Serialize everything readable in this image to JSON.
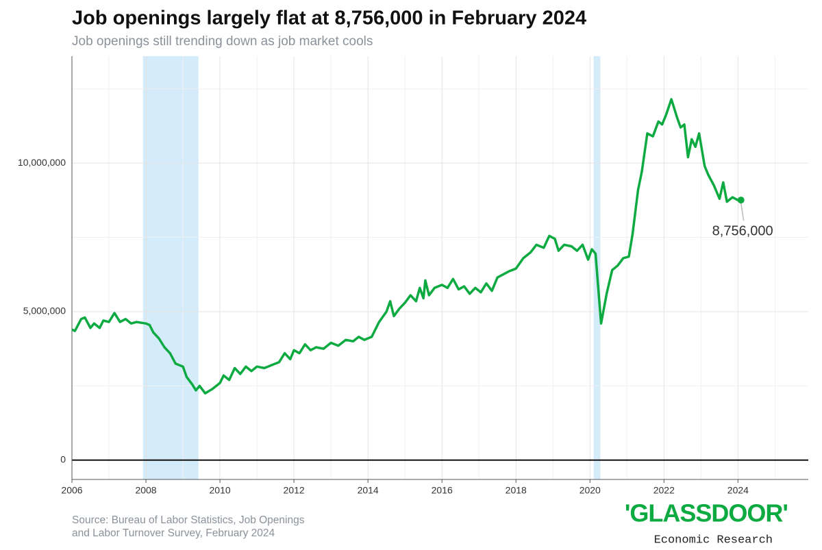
{
  "chart_data": {
    "type": "line",
    "title": "Job openings largely flat at 8,756,000 in February 2024",
    "subtitle": "Job openings still trending down as job market cools",
    "source": [
      "Source: Bureau of Labor Statistics, Job Openings",
      "and Labor Turnover Survey, February 2024"
    ],
    "logo": "'GLASSDOOR'",
    "logo_subtitle": "Economic Research",
    "annotation": "8,756,000",
    "x": [
      2006.0,
      2006.08,
      2006.25,
      2006.35,
      2006.5,
      2006.6,
      2006.75,
      2006.85,
      2007.0,
      2007.15,
      2007.3,
      2007.45,
      2007.6,
      2007.75,
      2008.0,
      2008.1,
      2008.2,
      2008.35,
      2008.5,
      2008.65,
      2008.8,
      2009.0,
      2009.1,
      2009.25,
      2009.35,
      2009.45,
      2009.6,
      2009.8,
      2010.0,
      2010.1,
      2010.25,
      2010.4,
      2010.55,
      2010.7,
      2010.85,
      2011.0,
      2011.2,
      2011.4,
      2011.6,
      2011.75,
      2011.9,
      2012.0,
      2012.15,
      2012.3,
      2012.45,
      2012.6,
      2012.8,
      2013.0,
      2013.2,
      2013.4,
      2013.6,
      2013.75,
      2013.9,
      2014.1,
      2014.3,
      2014.5,
      2014.6,
      2014.7,
      2014.85,
      2015.0,
      2015.15,
      2015.3,
      2015.4,
      2015.5,
      2015.55,
      2015.65,
      2015.8,
      2016.0,
      2016.15,
      2016.3,
      2016.45,
      2016.6,
      2016.75,
      2016.9,
      2017.05,
      2017.2,
      2017.35,
      2017.5,
      2017.65,
      2017.8,
      2018.0,
      2018.2,
      2018.4,
      2018.55,
      2018.75,
      2018.9,
      2019.05,
      2019.15,
      2019.3,
      2019.5,
      2019.65,
      2019.8,
      2019.95,
      2020.05,
      2020.15,
      2020.3,
      2020.45,
      2020.6,
      2020.75,
      2020.9,
      2021.05,
      2021.15,
      2021.3,
      2021.4,
      2021.55,
      2021.7,
      2021.85,
      2021.95,
      2022.05,
      2022.2,
      2022.35,
      2022.45,
      2022.55,
      2022.65,
      2022.75,
      2022.85,
      2022.95,
      2023.1,
      2023.2,
      2023.35,
      2023.5,
      2023.6,
      2023.7,
      2023.85,
      2024.0,
      2024.08
    ],
    "series": [
      {
        "name": "Job openings",
        "color": "#0caa41",
        "values": [
          4400000,
          4350000,
          4750000,
          4800000,
          4450000,
          4600000,
          4450000,
          4700000,
          4650000,
          4950000,
          4650000,
          4750000,
          4600000,
          4650000,
          4600000,
          4550000,
          4300000,
          4100000,
          3800000,
          3600000,
          3250000,
          3150000,
          2800000,
          2550000,
          2350000,
          2500000,
          2250000,
          2400000,
          2600000,
          2850000,
          2700000,
          3100000,
          2900000,
          3150000,
          3000000,
          3150000,
          3100000,
          3200000,
          3300000,
          3600000,
          3400000,
          3700000,
          3600000,
          3900000,
          3700000,
          3800000,
          3750000,
          3950000,
          3850000,
          4050000,
          4000000,
          4150000,
          4050000,
          4150000,
          4650000,
          5000000,
          5350000,
          4850000,
          5100000,
          5300000,
          5550000,
          5350000,
          5800000,
          5450000,
          6050000,
          5550000,
          5800000,
          5900000,
          5800000,
          6100000,
          5750000,
          5850000,
          5600000,
          5800000,
          5650000,
          5950000,
          5700000,
          6150000,
          6250000,
          6350000,
          6450000,
          6800000,
          7000000,
          7250000,
          7150000,
          7550000,
          7450000,
          7050000,
          7250000,
          7200000,
          7050000,
          7250000,
          6750000,
          7100000,
          6950000,
          4600000,
          5600000,
          6400000,
          6550000,
          6800000,
          6850000,
          7600000,
          9100000,
          9700000,
          11000000,
          10900000,
          11400000,
          11300000,
          11600000,
          12150000,
          11550000,
          11200000,
          11300000,
          10200000,
          10800000,
          10550000,
          11000000,
          9900000,
          9600000,
          9250000,
          8800000,
          9350000,
          8700000,
          8850000,
          8750000,
          8756000
        ]
      }
    ],
    "shaded_periods": [
      [
        2007.92,
        2009.42
      ],
      [
        2020.1,
        2020.28
      ]
    ],
    "shade_color": "#d4ebf9",
    "xlim": [
      2006,
      2025.9
    ],
    "ylim": [
      -650000,
      13600000
    ],
    "xticks": [
      2006,
      2008,
      2010,
      2012,
      2014,
      2016,
      2018,
      2020,
      2022,
      2024
    ],
    "yticks": [
      0,
      {
        "value": 5000000,
        "label": "5,000,000"
      },
      {
        "value": 10000000,
        "label": "10,000,000"
      }
    ],
    "grid": true
  }
}
